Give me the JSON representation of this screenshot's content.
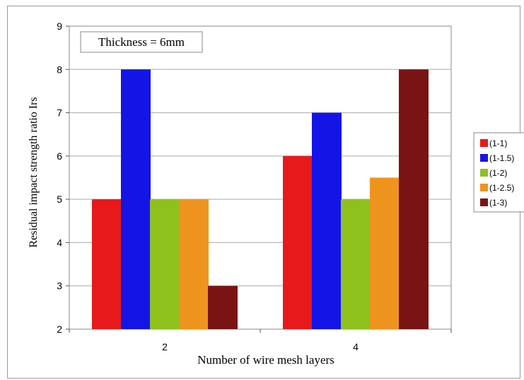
{
  "chart_data": {
    "type": "bar",
    "title": "",
    "annotation": "Thickness = 6mm",
    "xlabel": "Number of wire mesh layers",
    "ylabel": "Residual impact strength ratio Irs",
    "categories": [
      "2",
      "4"
    ],
    "ylim": [
      2,
      9
    ],
    "yticks": [
      2,
      3,
      4,
      5,
      6,
      7,
      8,
      9
    ],
    "grid": true,
    "legend_position": "right",
    "series": [
      {
        "name": "(1-1)",
        "color": "#e8191a",
        "values": [
          5,
          6
        ]
      },
      {
        "name": "(1-1.5)",
        "color": "#1414e6",
        "values": [
          8,
          7
        ]
      },
      {
        "name": "(1-2)",
        "color": "#8fc11d",
        "values": [
          5,
          5
        ]
      },
      {
        "name": "(1-2.5)",
        "color": "#ee941e",
        "values": [
          5,
          5.5
        ]
      },
      {
        "name": "(1-3)",
        "color": "#7a1414",
        "values": [
          3,
          8
        ]
      }
    ]
  }
}
